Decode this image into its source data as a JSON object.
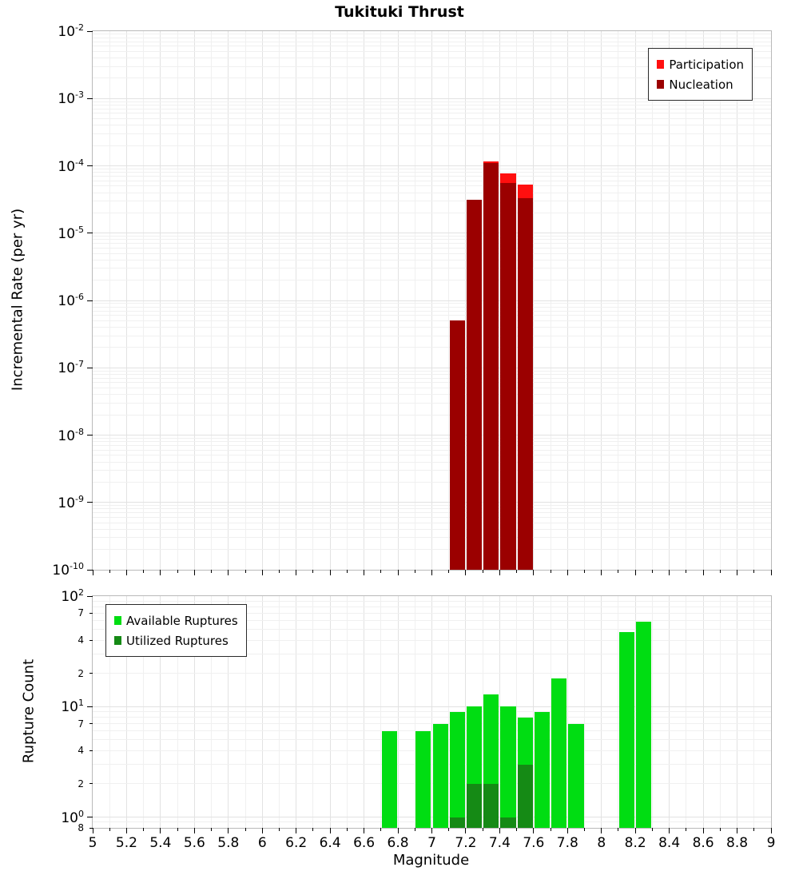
{
  "chart_data": [
    {
      "type": "bar",
      "title": "Tukituki Thrust",
      "ylabel": "Incremental Rate (per yr)",
      "y_scale": "log",
      "y_range": [
        1e-10,
        0.01
      ],
      "x_range": [
        5,
        9
      ],
      "bin_width": 0.1,
      "x_tick_step": 0.2,
      "show_x_tick_labels": false,
      "grid": true,
      "legend_position": "top-right",
      "yticks": [
        {
          "v": 0.01,
          "label": "10^-2"
        },
        {
          "v": 0.001,
          "label": "10^-3"
        },
        {
          "v": 0.0001,
          "label": "10^-4"
        },
        {
          "v": 1e-05,
          "label": "10^-5"
        },
        {
          "v": 1e-06,
          "label": "10^-6"
        },
        {
          "v": 1e-07,
          "label": "10^-7"
        },
        {
          "v": 1e-08,
          "label": "10^-8"
        },
        {
          "v": 1e-09,
          "label": "10^-9"
        },
        {
          "v": 1e-10,
          "label": "10^-10"
        }
      ],
      "xticks": [
        "5",
        "5.2",
        "5.4",
        "5.6",
        "5.8",
        "6",
        "6.2",
        "6.4",
        "6.6",
        "6.8",
        "7",
        "7.2",
        "7.4",
        "7.6",
        "7.8",
        "8",
        "8.2",
        "8.4",
        "8.6",
        "8.8",
        "9"
      ],
      "series": [
        {
          "name": "Participation",
          "color": "#ff0f0f",
          "bins": [
            {
              "x": 7.1,
              "y": 5e-07
            },
            {
              "x": 7.2,
              "y": 3.1e-05
            },
            {
              "x": 7.3,
              "y": 0.000115
            },
            {
              "x": 7.4,
              "y": 7.8e-05
            },
            {
              "x": 7.5,
              "y": 5.3e-05
            }
          ]
        },
        {
          "name": "Nucleation",
          "color": "#9b0000",
          "bins": [
            {
              "x": 7.1,
              "y": 5e-07
            },
            {
              "x": 7.2,
              "y": 3.1e-05
            },
            {
              "x": 7.3,
              "y": 0.00011
            },
            {
              "x": 7.4,
              "y": 5.6e-05
            },
            {
              "x": 7.5,
              "y": 3.3e-05
            }
          ]
        }
      ]
    },
    {
      "type": "bar",
      "ylabel": "Rupture Count",
      "xlabel": "Magnitude",
      "y_scale": "log",
      "y_range": [
        0.8,
        100
      ],
      "x_range": [
        5,
        9
      ],
      "bin_width": 0.1,
      "x_tick_step": 0.2,
      "show_x_tick_labels": true,
      "grid": true,
      "legend_position": "top-left",
      "yticks": [
        {
          "v": 100,
          "label": "10^2"
        },
        {
          "v": 70,
          "label": "7"
        },
        {
          "v": 40,
          "label": "4"
        },
        {
          "v": 20,
          "label": "2"
        },
        {
          "v": 10,
          "label": "10^1"
        },
        {
          "v": 7,
          "label": "7"
        },
        {
          "v": 4,
          "label": "4"
        },
        {
          "v": 2,
          "label": "2"
        },
        {
          "v": 1,
          "label": "10^0"
        },
        {
          "v": 0.8,
          "label": "8"
        }
      ],
      "xticks": [
        "5",
        "5.2",
        "5.4",
        "5.6",
        "5.8",
        "6",
        "6.2",
        "6.4",
        "6.6",
        "6.8",
        "7",
        "7.2",
        "7.4",
        "7.6",
        "7.8",
        "8",
        "8.2",
        "8.4",
        "8.6",
        "8.8",
        "9"
      ],
      "series": [
        {
          "name": "Available Ruptures",
          "color": "#00dd12",
          "bins": [
            {
              "x": 6.7,
              "y": 6
            },
            {
              "x": 6.9,
              "y": 6
            },
            {
              "x": 7.0,
              "y": 7
            },
            {
              "x": 7.1,
              "y": 9
            },
            {
              "x": 7.2,
              "y": 10
            },
            {
              "x": 7.3,
              "y": 13
            },
            {
              "x": 7.4,
              "y": 10
            },
            {
              "x": 7.5,
              "y": 8
            },
            {
              "x": 7.6,
              "y": 9
            },
            {
              "x": 7.7,
              "y": 18
            },
            {
              "x": 7.8,
              "y": 7
            },
            {
              "x": 8.1,
              "y": 47
            },
            {
              "x": 8.2,
              "y": 59
            }
          ]
        },
        {
          "name": "Utilized Ruptures",
          "color": "#158a15",
          "bins": [
            {
              "x": 7.1,
              "y": 1
            },
            {
              "x": 7.2,
              "y": 2
            },
            {
              "x": 7.3,
              "y": 2
            },
            {
              "x": 7.4,
              "y": 1
            },
            {
              "x": 7.5,
              "y": 3
            }
          ]
        }
      ]
    }
  ]
}
